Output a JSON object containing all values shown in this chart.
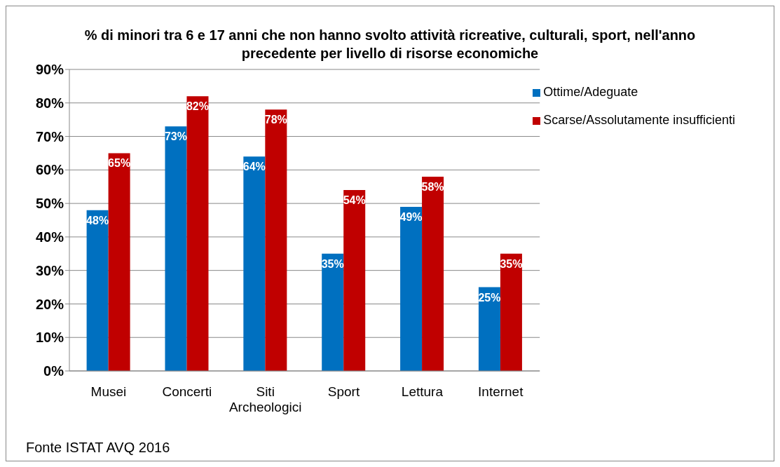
{
  "chart_data": {
    "type": "bar",
    "title": "% di minori tra 6 e 17 anni che non hanno svolto attività ricreative, culturali, sport, nell'anno precedente per livello di risorse economiche",
    "categories": [
      "Musei",
      "Concerti",
      "Siti Archeologici",
      "Sport",
      "Lettura",
      "Internet"
    ],
    "series": [
      {
        "name": "Ottime/Adeguate",
        "color": "#0070c0",
        "values": [
          48,
          73,
          64,
          35,
          49,
          25
        ],
        "value_labels": [
          "48%",
          "73%",
          "64%",
          "35%",
          "49%",
          "25%"
        ]
      },
      {
        "name": "Scarse/Assolutamente insufficienti",
        "color": "#c00000",
        "values": [
          65,
          82,
          78,
          54,
          58,
          35
        ],
        "value_labels": [
          "65%",
          "82%",
          "78%",
          "54%",
          "58%",
          "35%"
        ]
      }
    ],
    "ylim": [
      0,
      90
    ],
    "yticks": [
      {
        "value": 0,
        "label": "0%"
      },
      {
        "value": 10,
        "label": "10%"
      },
      {
        "value": 20,
        "label": "20%"
      },
      {
        "value": 30,
        "label": "30%"
      },
      {
        "value": 40,
        "label": "40%"
      },
      {
        "value": 50,
        "label": "50%"
      },
      {
        "value": 60,
        "label": "60%"
      },
      {
        "value": 70,
        "label": "70%"
      },
      {
        "value": 80,
        "label": "80%"
      },
      {
        "value": 90,
        "label": "90%"
      }
    ],
    "grid": "y",
    "legend": "top right",
    "annotations": [
      "Fonte ISTAT AVQ 2016"
    ]
  }
}
